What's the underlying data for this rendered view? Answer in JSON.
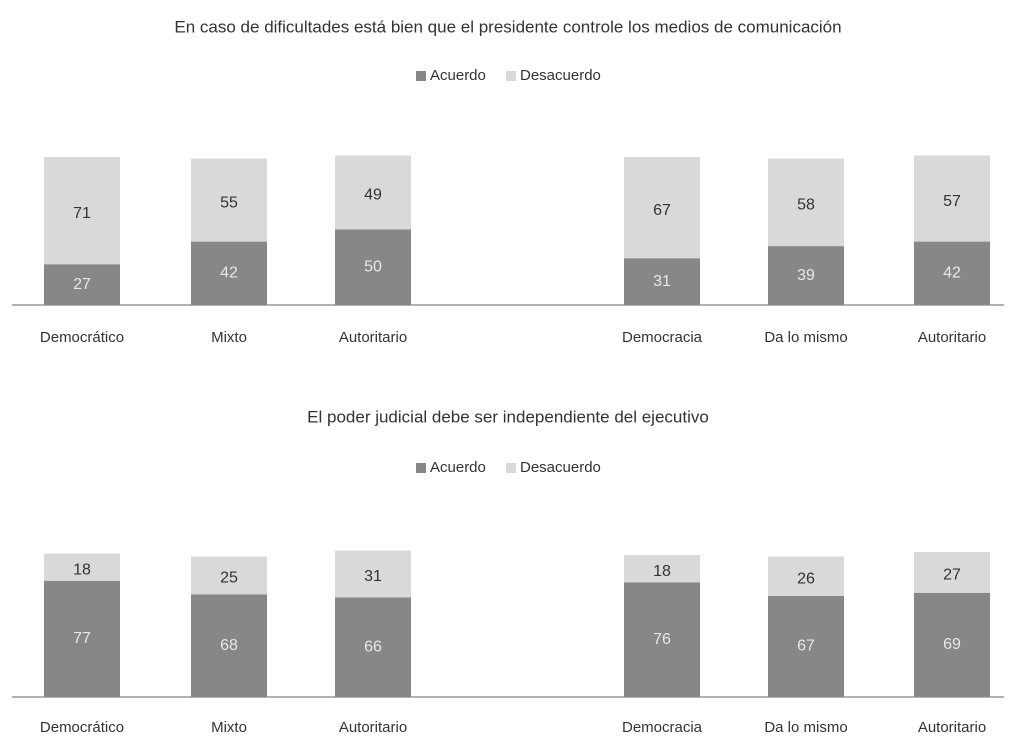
{
  "chart_data": [
    {
      "type": "stacked-bar",
      "title": "En caso de dificultades está bien que el presidente controle los medios de comunicación",
      "categories": [
        "Democrático",
        "Mixto",
        "Autoritario",
        "Democracia",
        "Da lo mismo",
        "Autoritario"
      ],
      "series": [
        {
          "name": "Acuerdo",
          "color": "#878787",
          "values": [
            27,
            42,
            50,
            31,
            39,
            42
          ]
        },
        {
          "name": "Desacuerdo",
          "color": "#d9d9d9",
          "values": [
            71,
            55,
            49,
            67,
            58,
            57
          ]
        }
      ]
    },
    {
      "type": "stacked-bar",
      "title": "El poder judicial debe ser independiente del ejecutivo",
      "categories": [
        "Democrático",
        "Mixto",
        "Autoritario",
        "Democracia",
        "Da lo mismo",
        "Autoritario"
      ],
      "series": [
        {
          "name": "Acuerdo",
          "color": "#878787",
          "values": [
            77,
            68,
            66,
            76,
            67,
            69
          ]
        },
        {
          "name": "Desacuerdo",
          "color": "#d9d9d9",
          "values": [
            18,
            25,
            31,
            18,
            26,
            27
          ]
        }
      ]
    }
  ]
}
